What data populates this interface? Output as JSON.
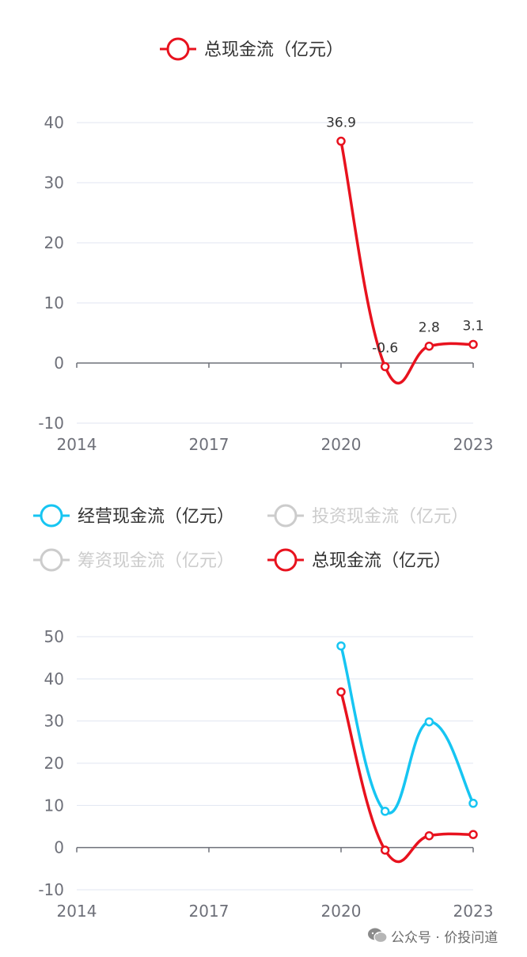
{
  "colors": {
    "operating": "#16c5f2",
    "total": "#e8121e",
    "inactive": "#cccccc",
    "grid": "#e0e6f1",
    "axis": "#6e7079"
  },
  "chart_data": [
    {
      "type": "line",
      "legend": [
        {
          "name": "总现金流（亿元）",
          "active": true,
          "color_key": "total"
        }
      ],
      "x": [
        "2014",
        "2015",
        "2016",
        "2017",
        "2018",
        "2019",
        "2020",
        "2021",
        "2022",
        "2023"
      ],
      "xticks": [
        "2014",
        "2017",
        "2020",
        "2023"
      ],
      "ylim": [
        -10,
        40
      ],
      "yticks": [
        "-10",
        "0",
        "10",
        "20",
        "30",
        "40"
      ],
      "series": [
        {
          "name": "总现金流（亿元）",
          "color_key": "total",
          "values": [
            null,
            null,
            null,
            null,
            null,
            null,
            36.9,
            -0.6,
            2.8,
            3.1
          ],
          "labels": [
            "",
            "",
            "",
            "",
            "",
            "",
            "36.9",
            "-0.6",
            "2.8",
            "3.1"
          ]
        }
      ]
    },
    {
      "type": "line",
      "legend": [
        {
          "name": "经营现金流（亿元）",
          "active": true,
          "color_key": "operating"
        },
        {
          "name": "投资现金流（亿元）",
          "active": false,
          "color_key": "inactive"
        },
        {
          "name": "筹资现金流（亿元）",
          "active": false,
          "color_key": "inactive"
        },
        {
          "name": "总现金流（亿元）",
          "active": true,
          "color_key": "total"
        }
      ],
      "x": [
        "2014",
        "2015",
        "2016",
        "2017",
        "2018",
        "2019",
        "2020",
        "2021",
        "2022",
        "2023"
      ],
      "xticks": [
        "2014",
        "2017",
        "2020",
        "2023"
      ],
      "ylim": [
        -10,
        50
      ],
      "yticks": [
        "-10",
        "0",
        "10",
        "20",
        "30",
        "40",
        "50"
      ],
      "series": [
        {
          "name": "经营现金流（亿元）",
          "color_key": "operating",
          "values": [
            null,
            null,
            null,
            null,
            null,
            null,
            47.8,
            8.6,
            29.8,
            10.5
          ]
        },
        {
          "name": "总现金流（亿元）",
          "color_key": "total",
          "values": [
            null,
            null,
            null,
            null,
            null,
            null,
            36.9,
            -0.6,
            2.8,
            3.1
          ]
        }
      ]
    }
  ],
  "watermark": {
    "text": "公众号 · 价投问道"
  }
}
